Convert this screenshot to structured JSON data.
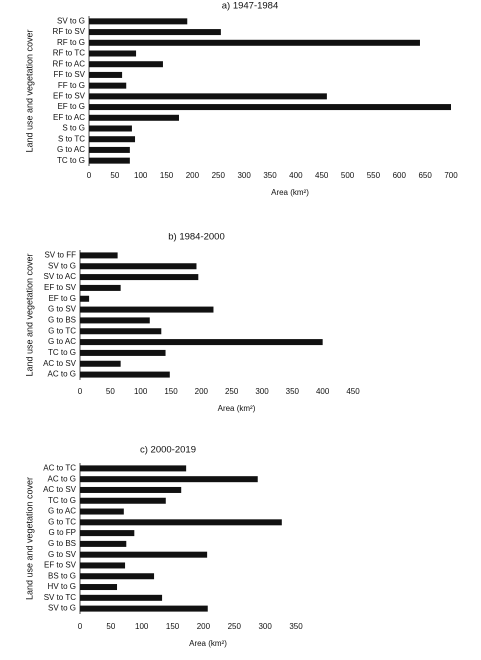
{
  "chart_data": [
    {
      "type": "barh",
      "title": "a) 1947-1984",
      "ylabel": "Land use and vegetation cover",
      "xlabel": "Area (km²)",
      "color": "#111111",
      "categories": [
        "SV to G",
        "RF to SV",
        "RF to G",
        "RF to TC",
        "RF to AC",
        "FF to SV",
        "FF to G",
        "EF to SV",
        "EF to G",
        "EF to AC",
        "S to G",
        "S to TC",
        "G to AC",
        "TC to G"
      ],
      "values": [
        190,
        255,
        640,
        91,
        143,
        64,
        72,
        460,
        700,
        174,
        83,
        89,
        79,
        79
      ],
      "xlim": [
        0,
        700
      ],
      "xticks": [
        0,
        50,
        100,
        150,
        200,
        250,
        300,
        350,
        400,
        450,
        500,
        550,
        600,
        650,
        700
      ]
    },
    {
      "type": "barh",
      "title": "b) 1984-2000",
      "ylabel": "Land use and vegetation cover",
      "xlabel": "Area (km²)",
      "color": "#111111",
      "categories": [
        "SV to FF",
        "SV to G",
        "SV to AC",
        "EF to SV",
        "EF to G",
        "G to SV",
        "G to BS",
        "G to TC",
        "G to AC",
        "TC to G",
        "AC to SV",
        "AC to G"
      ],
      "values": [
        62,
        192,
        195,
        67,
        15,
        220,
        115,
        134,
        400,
        141,
        67,
        148
      ],
      "xlim": [
        0,
        450
      ],
      "xticks": [
        0,
        50,
        100,
        150,
        200,
        250,
        300,
        350,
        400,
        450
      ]
    },
    {
      "type": "barh",
      "title": "c) 2000-2019",
      "ylabel": "Land use and vegetation cover",
      "xlabel": "Area (km²)",
      "color": "#111111",
      "categories": [
        "AC to TC",
        "AC to G",
        "AC to SV",
        "TC to G",
        "G to AC",
        "G to TC",
        "G to FP",
        "G to BS",
        "G to SV",
        "EF to SV",
        "BS to G",
        "HV to G",
        "SV to TC",
        "SV to G"
      ],
      "values": [
        172,
        288,
        164,
        139,
        71,
        327,
        88,
        75,
        206,
        73,
        120,
        60,
        133,
        207
      ],
      "xlim": [
        0,
        350
      ],
      "xticks": [
        0,
        50,
        100,
        150,
        200,
        250,
        300,
        350
      ]
    }
  ]
}
